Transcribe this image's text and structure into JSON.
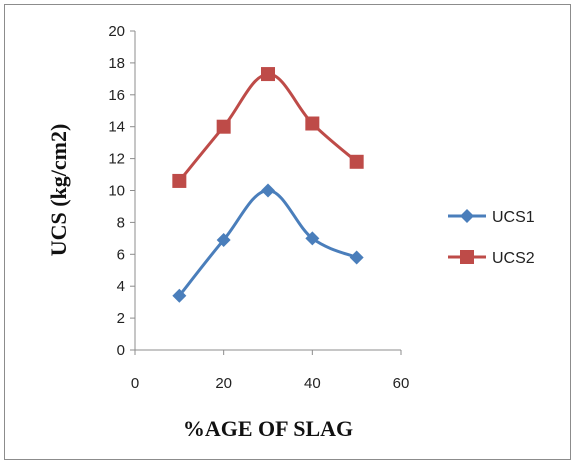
{
  "chart_data": {
    "type": "line",
    "title": "",
    "xlabel": "%AGE OF SLAG",
    "ylabel": "UCS (kg/cm2)",
    "xlim": [
      0,
      60
    ],
    "ylim": [
      0,
      20
    ],
    "x_ticks": [
      0,
      20,
      40,
      60
    ],
    "y_ticks": [
      0,
      2,
      4,
      6,
      8,
      10,
      12,
      14,
      16,
      18,
      20
    ],
    "grid": false,
    "legend_position": "right",
    "series": [
      {
        "name": "UCS1",
        "color": "#4A7EBB",
        "marker": "diamond",
        "points": [
          [
            10,
            3.4
          ],
          [
            20,
            6.9
          ],
          [
            30,
            10.0
          ],
          [
            40,
            7.0
          ],
          [
            50,
            5.8
          ]
        ]
      },
      {
        "name": "UCS2",
        "color": "#BE4B48",
        "marker": "square",
        "points": [
          [
            10,
            10.6
          ],
          [
            20,
            14.0
          ],
          [
            30,
            17.3
          ],
          [
            40,
            14.2
          ],
          [
            50,
            11.8
          ]
        ]
      }
    ]
  }
}
